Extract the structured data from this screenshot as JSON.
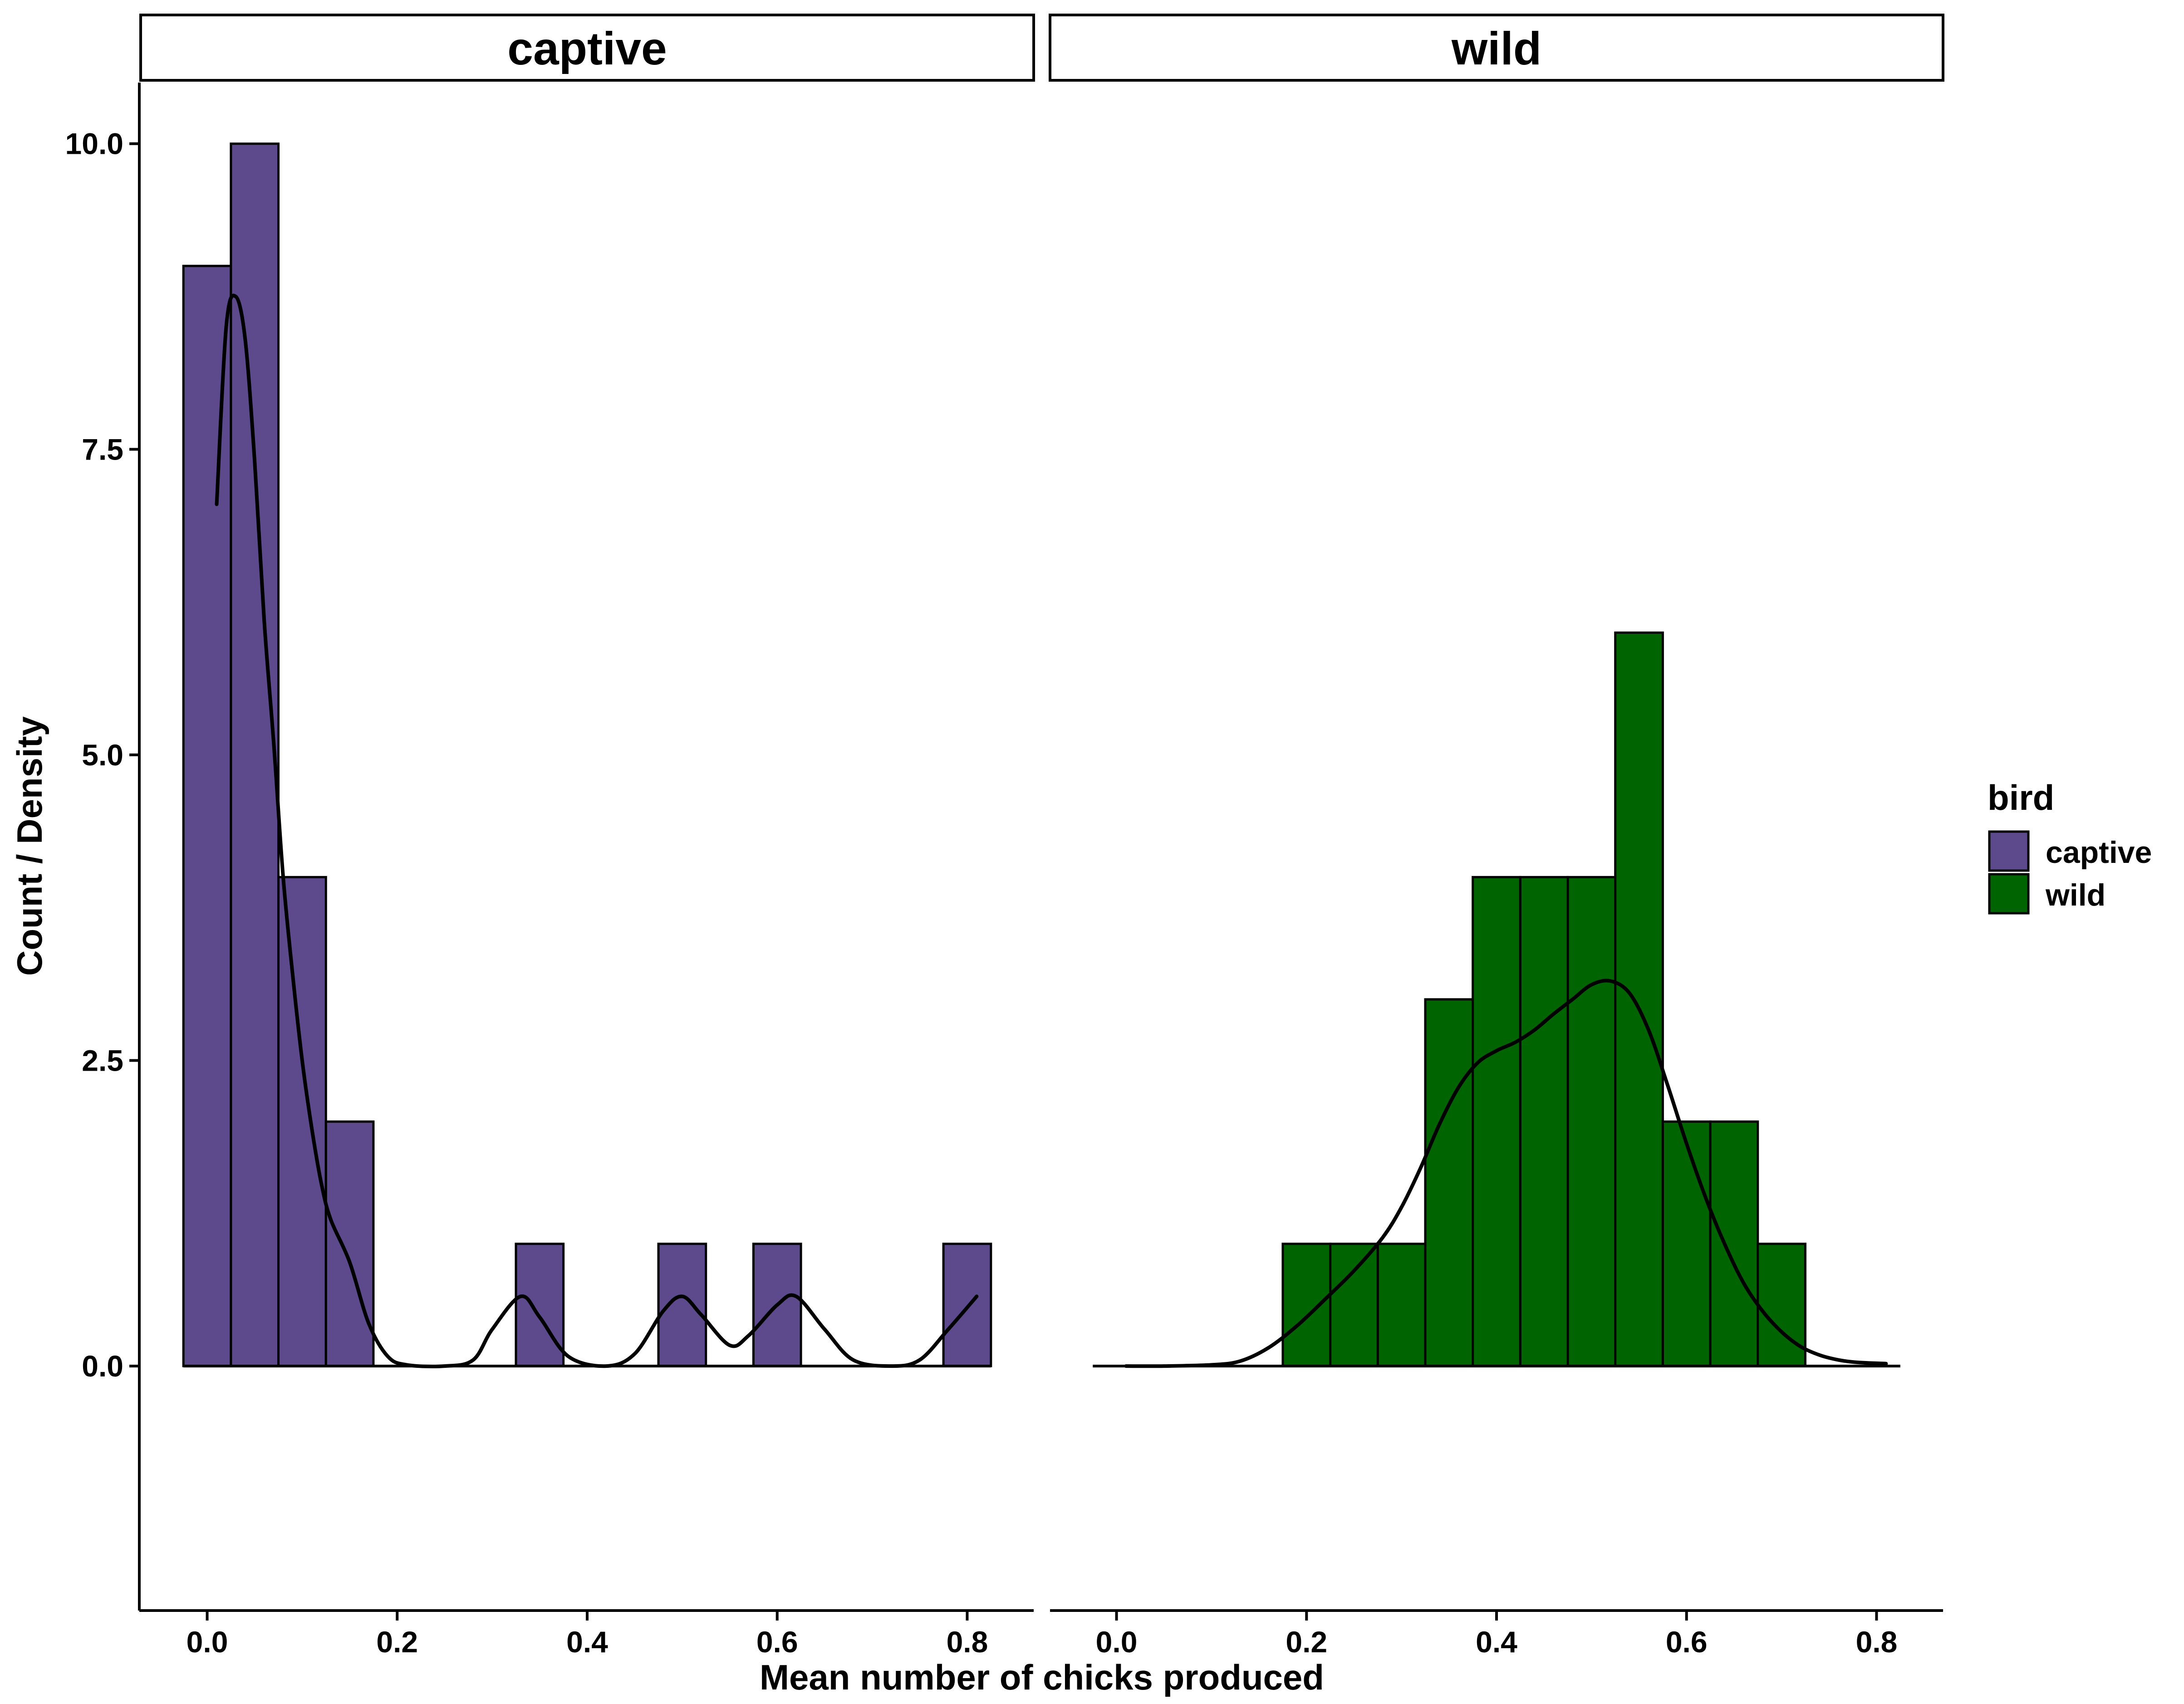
{
  "chart_data": {
    "type": "bar",
    "subtype": "faceted histogram with density overlay",
    "title": "",
    "xlabel": "Mean number of chicks produced",
    "ylabel": "Count / Density",
    "xlim": [
      -0.07,
      0.87
    ],
    "ylim": [
      -2.0,
      10.5
    ],
    "x_ticks": [
      0.0,
      0.2,
      0.4,
      0.6,
      0.8
    ],
    "x_tick_labels": [
      "0.0",
      "0.2",
      "0.4",
      "0.6",
      "0.8"
    ],
    "y_ticks": [
      0.0,
      2.5,
      5.0,
      7.5,
      10.0
    ],
    "y_tick_labels": [
      "0.0",
      "2.5",
      "5.0",
      "7.5",
      "10.0"
    ],
    "grid": false,
    "bin_width": 0.05,
    "legend": {
      "title": "bird",
      "position": "right",
      "items": [
        {
          "label": "captive",
          "color": "#5d4a8c"
        },
        {
          "label": "wild",
          "color": "#006400"
        }
      ]
    },
    "facets": [
      {
        "label": "captive",
        "color": "#5d4a8c",
        "bins": [
          {
            "x_min": -0.025,
            "x_max": 0.025,
            "count": 9
          },
          {
            "x_min": 0.025,
            "x_max": 0.075,
            "count": 10
          },
          {
            "x_min": 0.075,
            "x_max": 0.125,
            "count": 4
          },
          {
            "x_min": 0.125,
            "x_max": 0.175,
            "count": 2
          },
          {
            "x_min": 0.325,
            "x_max": 0.375,
            "count": 1
          },
          {
            "x_min": 0.475,
            "x_max": 0.525,
            "count": 1
          },
          {
            "x_min": 0.575,
            "x_max": 0.625,
            "count": 1
          },
          {
            "x_min": 0.775,
            "x_max": 0.825,
            "count": 1
          }
        ],
        "baseline_range": [
          -0.025,
          0.825
        ],
        "density": [
          [
            0.01,
            7.05
          ],
          [
            0.02,
            8.5
          ],
          [
            0.03,
            8.75
          ],
          [
            0.04,
            8.4
          ],
          [
            0.05,
            7.4
          ],
          [
            0.06,
            6.1
          ],
          [
            0.07,
            5.1
          ],
          [
            0.08,
            4.0
          ],
          [
            0.09,
            3.2
          ],
          [
            0.1,
            2.5
          ],
          [
            0.11,
            1.95
          ],
          [
            0.12,
            1.5
          ],
          [
            0.13,
            1.2
          ],
          [
            0.15,
            0.85
          ],
          [
            0.17,
            0.35
          ],
          [
            0.19,
            0.08
          ],
          [
            0.21,
            0.01
          ],
          [
            0.25,
            0.0
          ],
          [
            0.28,
            0.05
          ],
          [
            0.3,
            0.3
          ],
          [
            0.33,
            0.57
          ],
          [
            0.35,
            0.4
          ],
          [
            0.38,
            0.08
          ],
          [
            0.42,
            0.0
          ],
          [
            0.45,
            0.1
          ],
          [
            0.48,
            0.45
          ],
          [
            0.5,
            0.57
          ],
          [
            0.52,
            0.42
          ],
          [
            0.55,
            0.17
          ],
          [
            0.57,
            0.25
          ],
          [
            0.6,
            0.5
          ],
          [
            0.62,
            0.57
          ],
          [
            0.65,
            0.3
          ],
          [
            0.68,
            0.05
          ],
          [
            0.72,
            0.0
          ],
          [
            0.75,
            0.05
          ],
          [
            0.78,
            0.3
          ],
          [
            0.81,
            0.57
          ]
        ]
      },
      {
        "label": "wild",
        "color": "#006400",
        "bins": [
          {
            "x_min": 0.175,
            "x_max": 0.225,
            "count": 1
          },
          {
            "x_min": 0.225,
            "x_max": 0.275,
            "count": 1
          },
          {
            "x_min": 0.275,
            "x_max": 0.325,
            "count": 1
          },
          {
            "x_min": 0.325,
            "x_max": 0.375,
            "count": 3
          },
          {
            "x_min": 0.375,
            "x_max": 0.425,
            "count": 4
          },
          {
            "x_min": 0.425,
            "x_max": 0.475,
            "count": 4
          },
          {
            "x_min": 0.475,
            "x_max": 0.525,
            "count": 4
          },
          {
            "x_min": 0.525,
            "x_max": 0.575,
            "count": 6
          },
          {
            "x_min": 0.575,
            "x_max": 0.625,
            "count": 2
          },
          {
            "x_min": 0.625,
            "x_max": 0.675,
            "count": 2
          },
          {
            "x_min": 0.675,
            "x_max": 0.725,
            "count": 1
          }
        ],
        "baseline_range": [
          -0.025,
          0.825
        ],
        "density": [
          [
            0.01,
            0.0
          ],
          [
            0.05,
            0.0
          ],
          [
            0.1,
            0.01
          ],
          [
            0.13,
            0.04
          ],
          [
            0.16,
            0.15
          ],
          [
            0.19,
            0.33
          ],
          [
            0.22,
            0.55
          ],
          [
            0.25,
            0.78
          ],
          [
            0.28,
            1.05
          ],
          [
            0.3,
            1.3
          ],
          [
            0.32,
            1.62
          ],
          [
            0.34,
            1.98
          ],
          [
            0.36,
            2.28
          ],
          [
            0.38,
            2.48
          ],
          [
            0.4,
            2.58
          ],
          [
            0.42,
            2.65
          ],
          [
            0.44,
            2.75
          ],
          [
            0.46,
            2.88
          ],
          [
            0.48,
            3.0
          ],
          [
            0.5,
            3.12
          ],
          [
            0.52,
            3.15
          ],
          [
            0.54,
            3.05
          ],
          [
            0.56,
            2.75
          ],
          [
            0.58,
            2.3
          ],
          [
            0.6,
            1.82
          ],
          [
            0.62,
            1.38
          ],
          [
            0.64,
            1.0
          ],
          [
            0.66,
            0.68
          ],
          [
            0.68,
            0.45
          ],
          [
            0.7,
            0.28
          ],
          [
            0.72,
            0.16
          ],
          [
            0.74,
            0.09
          ],
          [
            0.76,
            0.05
          ],
          [
            0.78,
            0.03
          ],
          [
            0.81,
            0.02
          ]
        ]
      }
    ]
  }
}
